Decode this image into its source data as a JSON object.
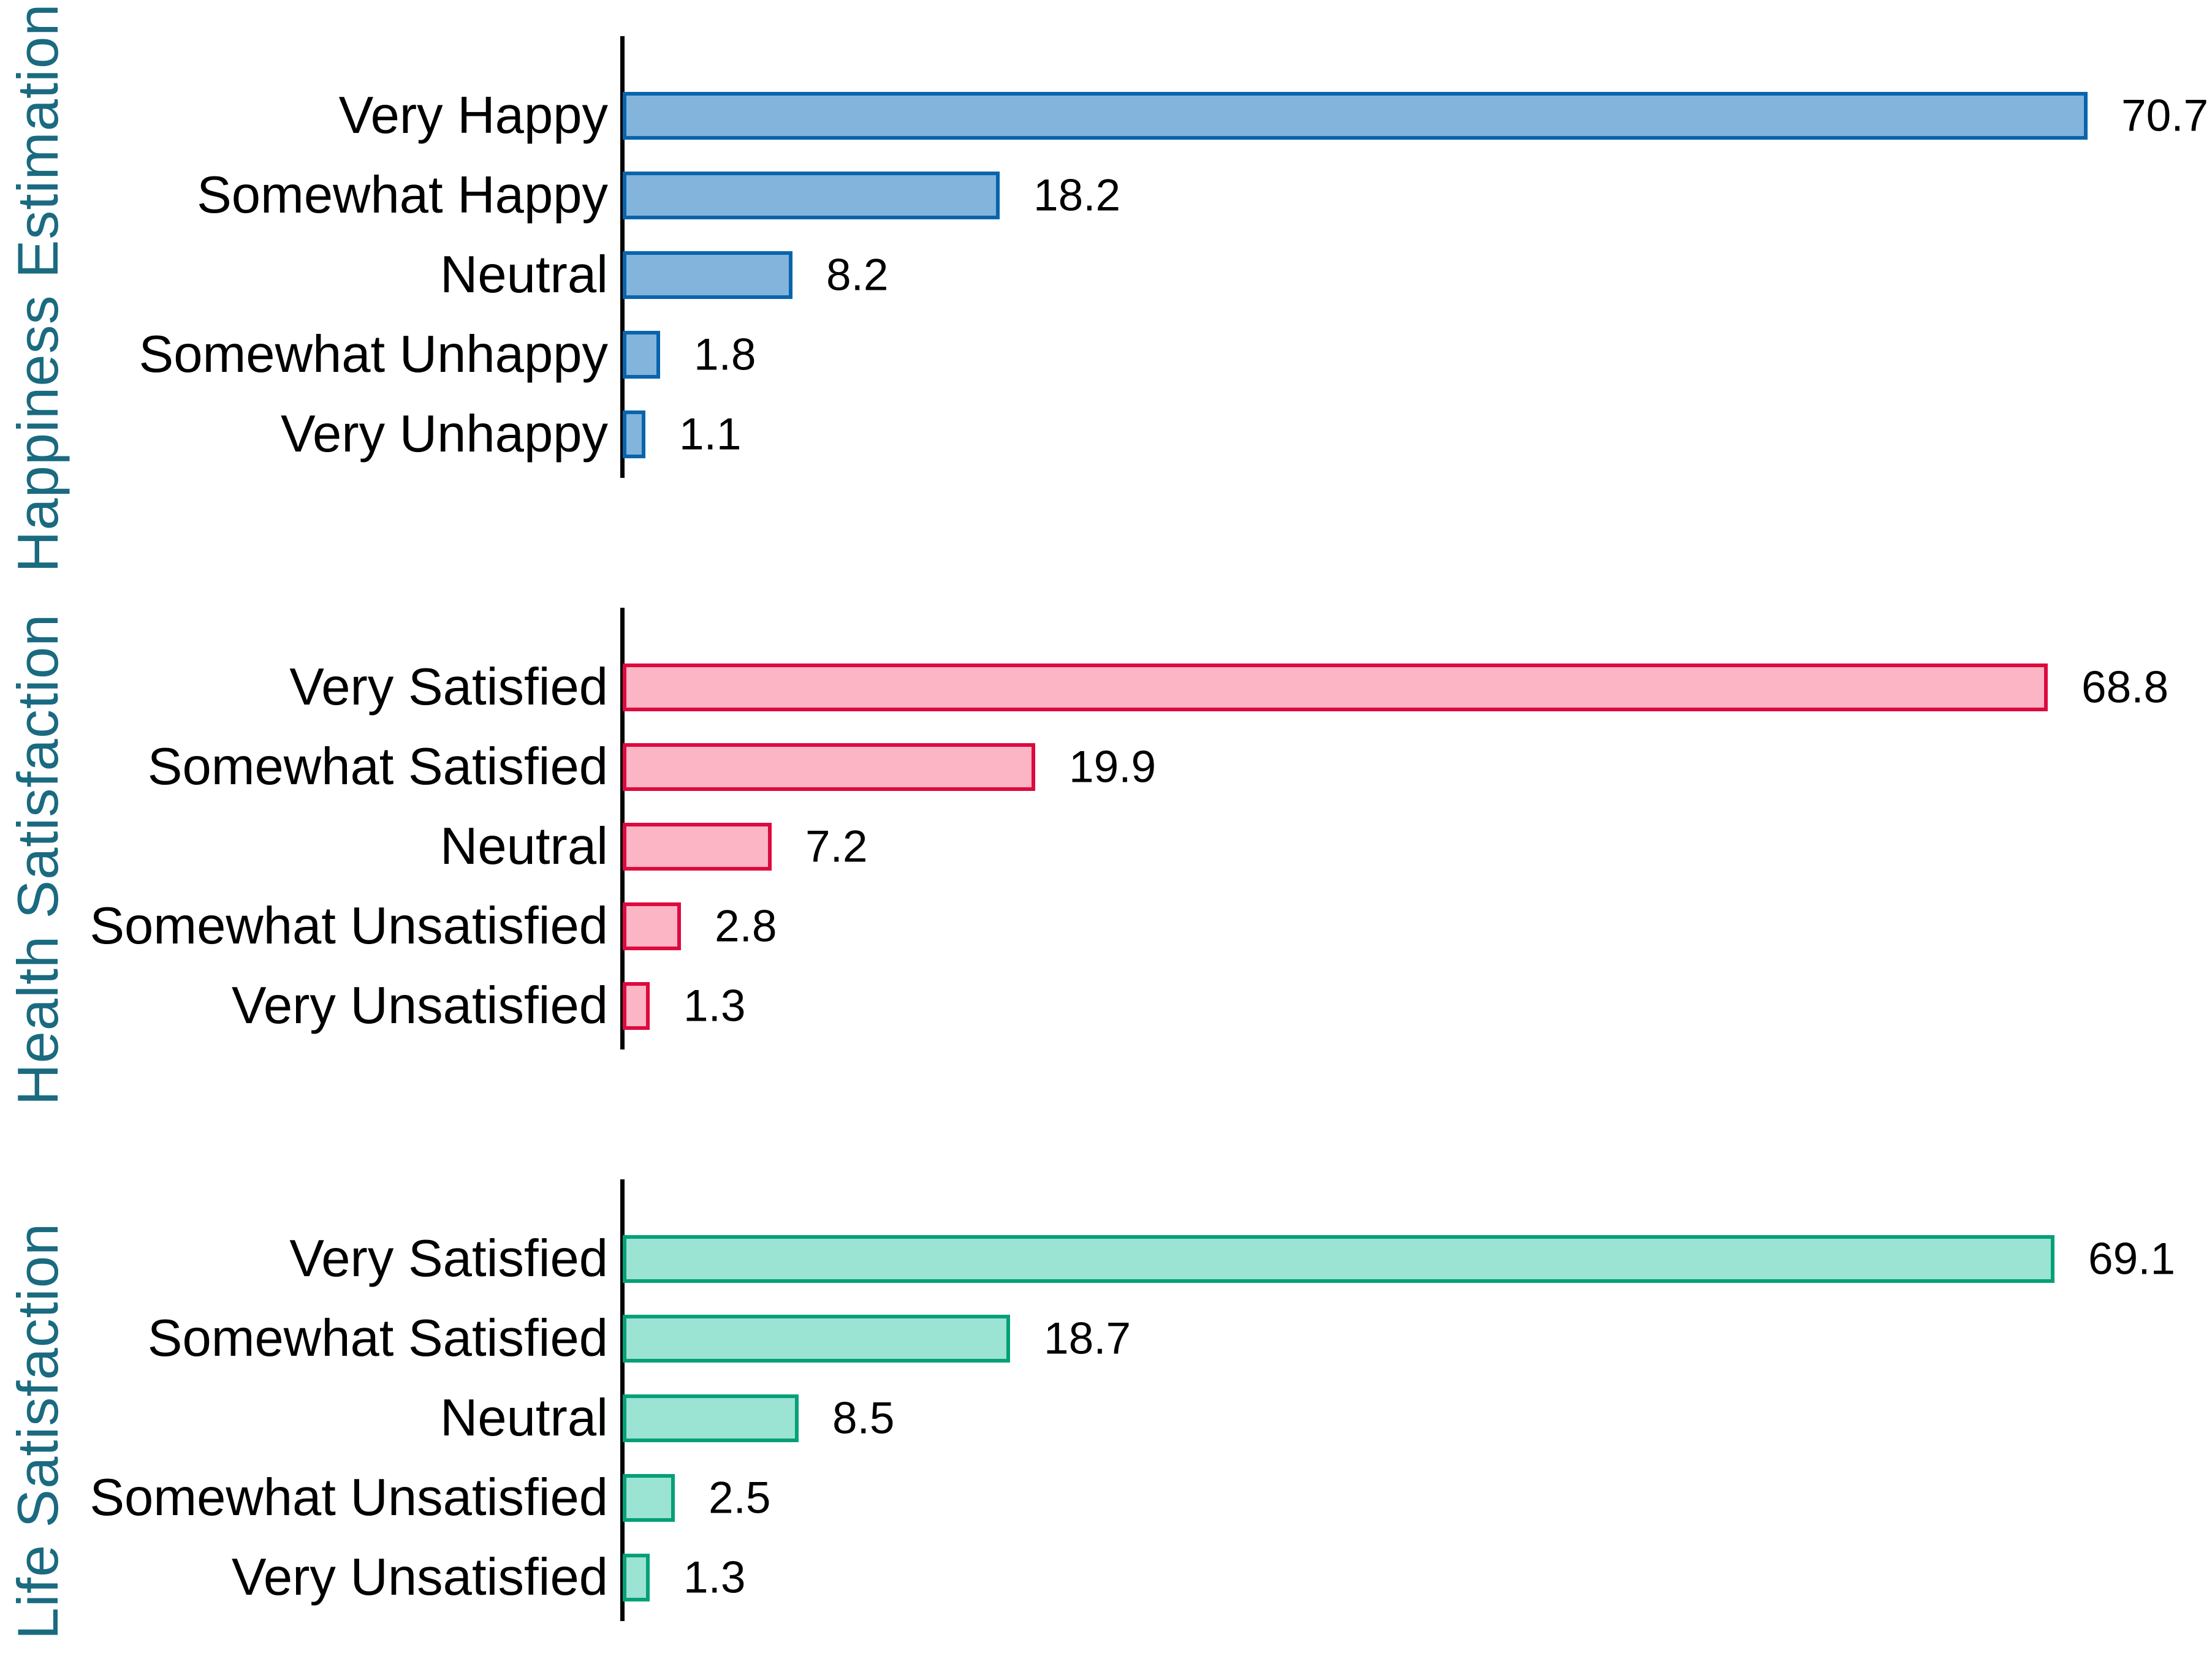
{
  "page": {
    "background": "#ffffff",
    "text_color": "#000000",
    "axis_color": "#000000",
    "panel_title_color": "#1A6A80"
  },
  "chart_data": [
    {
      "type": "bar",
      "orientation": "horizontal",
      "title": "Happiness Estimation",
      "categories": [
        "Very Happy",
        "Somewhat Happy",
        "Neutral",
        "Somewhat Unhappy",
        "Very Unhappy"
      ],
      "values": [
        70.7,
        18.2,
        8.2,
        1.8,
        1.1
      ],
      "bar_fill": "#82B4DC",
      "bar_border": "#0A64AC",
      "xlim": [
        0,
        76
      ],
      "grid": false,
      "legend": false,
      "value_labels_shown": true
    },
    {
      "type": "bar",
      "orientation": "horizontal",
      "title": "Health Satisfaction",
      "categories": [
        "Very Satisfied",
        "Somewhat Satisfied",
        "Neutral",
        "Somewhat Unsatisfied",
        "Very Unsatisfied"
      ],
      "values": [
        68.8,
        19.9,
        7.2,
        2.8,
        1.3
      ],
      "bar_fill": "#FCB5C5",
      "bar_border": "#DD0A3F",
      "xlim": [
        0,
        76
      ],
      "grid": false,
      "legend": false,
      "value_labels_shown": true
    },
    {
      "type": "bar",
      "orientation": "horizontal",
      "title": "Life Satisfaction",
      "categories": [
        "Very Satisfied",
        "Somewhat Satisfied",
        "Neutral",
        "Somewhat Unsatisfied",
        "Very Unsatisfied"
      ],
      "values": [
        69.1,
        18.7,
        8.5,
        2.5,
        1.3
      ],
      "bar_fill": "#9BE3D3",
      "bar_border": "#04A078",
      "xlim": [
        0,
        76
      ],
      "grid": false,
      "legend": false,
      "value_labels_shown": true
    }
  ]
}
